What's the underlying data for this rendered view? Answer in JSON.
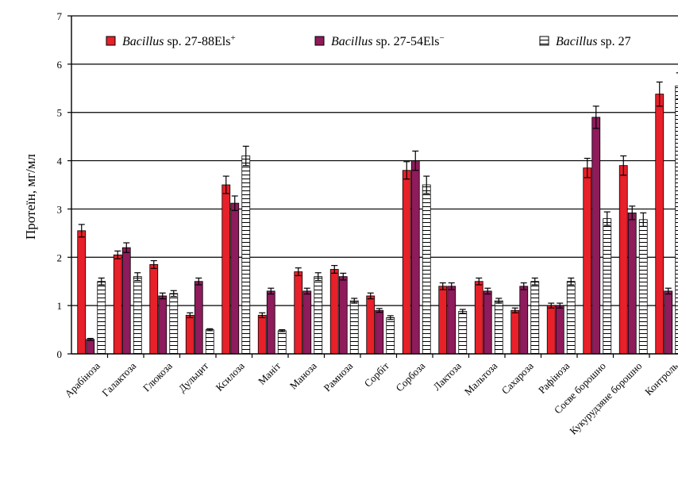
{
  "chart_data": {
    "type": "bar",
    "title": "",
    "xlabel": "",
    "ylabel": "Протеїн, мг/мл",
    "ylim": [
      0,
      7
    ],
    "yticks": [
      0,
      1,
      2,
      3,
      4,
      5,
      6,
      7
    ],
    "grid": "horizontal",
    "legend_position": "top",
    "categories": [
      "Арабіноза",
      "Галактоза",
      "Глюкоза",
      "Дульцит",
      "Ксилоза",
      "Маніт",
      "Маноза",
      "Рамноза",
      "Сорбіт",
      "Сорбоза",
      "Лактоза",
      "Мальтоза",
      "Сахароза",
      "Рафіноза",
      "Соєве борошно",
      "Кукурудзяне борошно",
      "Контроль"
    ],
    "series": [
      {
        "name": "Bacillus sp. 27-88Els⁺",
        "name_italic": "Bacillus",
        "name_rest": " sp. 27-88Els",
        "name_sup": "+",
        "color": "#e8202a",
        "pattern": "solid",
        "values": [
          2.55,
          2.05,
          1.85,
          0.8,
          3.5,
          0.8,
          1.7,
          1.75,
          1.2,
          3.8,
          1.4,
          1.5,
          0.9,
          1.0,
          3.85,
          3.9,
          5.38
        ],
        "errors": [
          0.13,
          0.08,
          0.08,
          0.05,
          0.18,
          0.05,
          0.08,
          0.08,
          0.06,
          0.18,
          0.07,
          0.07,
          0.05,
          0.05,
          0.2,
          0.2,
          0.25
        ]
      },
      {
        "name": "Bacillus sp. 27-54Els⁻",
        "name_italic": "Bacillus",
        "name_rest": " sp. 27-54Els",
        "name_sup": "−",
        "color": "#8e1b5b",
        "pattern": "solid",
        "values": [
          0.3,
          2.2,
          1.2,
          1.5,
          3.12,
          1.3,
          1.3,
          1.6,
          0.9,
          4.0,
          1.4,
          1.3,
          1.4,
          1.0,
          4.9,
          2.92,
          1.3
        ],
        "errors": [
          0.02,
          0.1,
          0.06,
          0.07,
          0.15,
          0.06,
          0.06,
          0.07,
          0.04,
          0.2,
          0.07,
          0.06,
          0.07,
          0.05,
          0.23,
          0.14,
          0.06
        ]
      },
      {
        "name": "Bacillus sp. 27",
        "name_italic": "Bacillus",
        "name_rest": " sp. 27",
        "name_sup": "",
        "color": "#ffffff",
        "pattern": "horizontal-lines",
        "values": [
          1.5,
          1.6,
          1.25,
          0.5,
          4.1,
          0.48,
          1.6,
          1.1,
          0.75,
          3.5,
          0.88,
          1.1,
          1.5,
          1.5,
          2.8,
          2.78,
          5.55
        ],
        "errors": [
          0.07,
          0.08,
          0.06,
          0.02,
          0.2,
          0.02,
          0.08,
          0.05,
          0.04,
          0.18,
          0.04,
          0.05,
          0.07,
          0.07,
          0.14,
          0.14,
          0.27
        ]
      }
    ]
  }
}
